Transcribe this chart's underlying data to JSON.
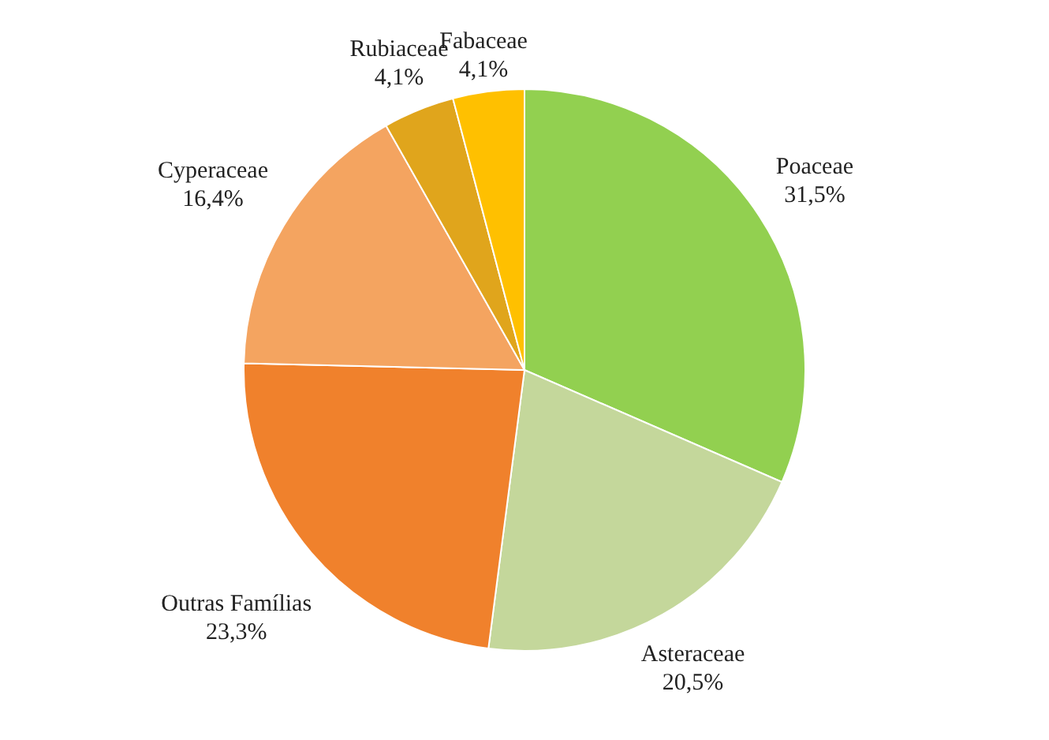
{
  "chart_data": {
    "type": "pie",
    "categories": [
      "Poaceae",
      "Asteraceae",
      "Outras Famílias",
      "Cyperaceae",
      "Rubiaceae",
      "Fabaceae"
    ],
    "values": [
      31.5,
      20.5,
      23.3,
      16.4,
      4.1,
      4.1
    ],
    "value_labels": [
      "31,5%",
      "20,5%",
      "23,3%",
      "16,4%",
      "4,1%",
      "4,1%"
    ],
    "colors": [
      "#92d050",
      "#c4d79b",
      "#f0812c",
      "#f4a460",
      "#e0a51c",
      "#ffc000"
    ],
    "legend": false
  }
}
